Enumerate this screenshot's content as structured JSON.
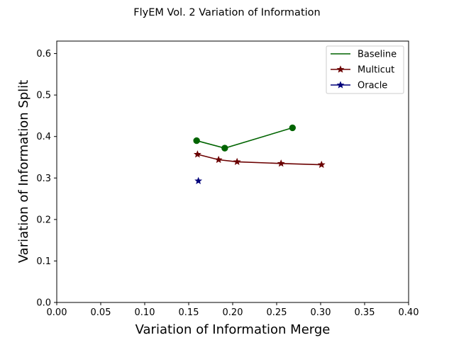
{
  "chart_data": {
    "type": "line",
    "title": "FlyEM Vol. 2 Variation of Information",
    "xlabel": "Variation of Information Merge",
    "ylabel": "Variation of Information Split",
    "xlim": [
      0.0,
      0.4
    ],
    "ylim": [
      0.0,
      0.63
    ],
    "xticks": [
      0.0,
      0.05,
      0.1,
      0.15,
      0.2,
      0.25,
      0.3,
      0.35,
      0.4
    ],
    "xtick_labels": [
      "0.00",
      "0.05",
      "0.10",
      "0.15",
      "0.20",
      "0.25",
      "0.30",
      "0.35",
      "0.40"
    ],
    "yticks": [
      0.0,
      0.1,
      0.2,
      0.3,
      0.4,
      0.5,
      0.6
    ],
    "ytick_labels": [
      "0.0",
      "0.1",
      "0.2",
      "0.3",
      "0.4",
      "0.5",
      "0.6"
    ],
    "grid": false,
    "legend_position": "top-right",
    "series": [
      {
        "name": "Baseline",
        "color": "#006400",
        "marker": "circle",
        "x": [
          0.159,
          0.191,
          0.268
        ],
        "y": [
          0.39,
          0.372,
          0.421
        ]
      },
      {
        "name": "Multicut",
        "color": "#6b0000",
        "marker": "star",
        "x": [
          0.16,
          0.184,
          0.205,
          0.255,
          0.301
        ],
        "y": [
          0.357,
          0.344,
          0.339,
          0.335,
          0.332
        ]
      },
      {
        "name": "Oracle",
        "color": "#00007a",
        "marker": "star",
        "x": [
          0.161
        ],
        "y": [
          0.293
        ]
      }
    ]
  }
}
